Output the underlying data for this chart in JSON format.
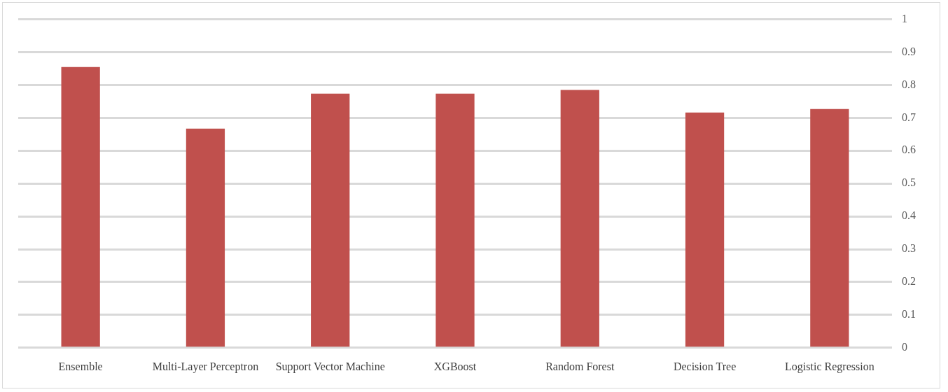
{
  "chart_data": {
    "type": "bar",
    "categories": [
      "Ensemble",
      "Multi-Layer Perceptron",
      "Support Vector Machine",
      "XGBoost",
      "Random Forest",
      "Decision Tree",
      "Logistic Regression"
    ],
    "values": [
      0.855,
      0.667,
      0.774,
      0.774,
      0.785,
      0.716,
      0.727
    ],
    "color": "#c0504d",
    "ylim": [
      0,
      1
    ],
    "yticks": [
      0,
      0.1,
      0.2,
      0.3,
      0.4,
      0.5,
      0.6,
      0.7,
      0.8,
      0.9,
      1
    ],
    "grid": "y",
    "legend": false
  }
}
